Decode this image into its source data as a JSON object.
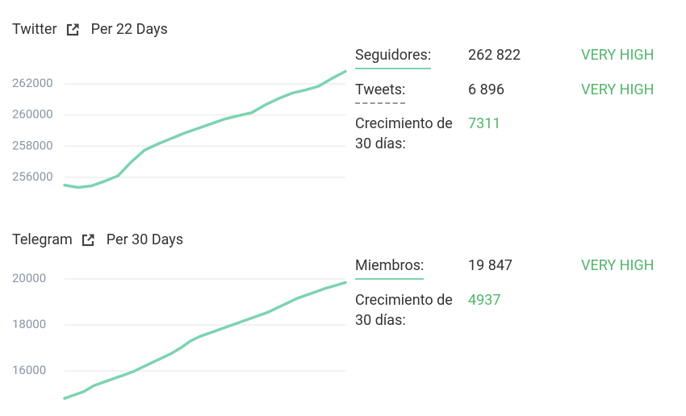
{
  "panels": [
    {
      "title": "Twitter",
      "period": "Per 22 Days",
      "chart": {
        "type": "line",
        "color": "#7dd3b0",
        "grid": true,
        "ylim": [
          255000,
          264000
        ],
        "yticks": [
          256000,
          258000,
          260000,
          262000
        ],
        "values": [
          255500,
          255350,
          255450,
          255750,
          256100,
          257000,
          257750,
          258150,
          258500,
          258850,
          259150,
          259450,
          259750,
          259950,
          260150,
          260650,
          261050,
          261400,
          261600,
          261850,
          262350,
          262800
        ]
      },
      "stats": [
        {
          "label": "Seguidores:",
          "value": "262 822",
          "rating": "VERY HIGH"
        },
        {
          "label": "Tweets:",
          "value": "6 896",
          "rating": "VERY HIGH"
        },
        {
          "label": "Crecimiento de 30 días:",
          "value": 7311
        }
      ]
    },
    {
      "title": "Telegram",
      "period": "Per 30 Days",
      "chart": {
        "type": "line",
        "color": "#7dd3b0",
        "grid": true,
        "ylim": [
          14700,
          20500
        ],
        "yticks": [
          16000,
          18000,
          20000
        ],
        "values": [
          14800,
          14950,
          15100,
          15350,
          15500,
          15650,
          15800,
          15950,
          16150,
          16350,
          16550,
          16750,
          17000,
          17300,
          17500,
          17650,
          17800,
          17950,
          18100,
          18250,
          18400,
          18550,
          18750,
          18950,
          19150,
          19300,
          19450,
          19600,
          19720,
          19847
        ]
      },
      "stats": [
        {
          "label": "Miembros:",
          "value": "19 847",
          "rating": "VERY HIGH"
        },
        {
          "label": "Crecimiento de 30 días:",
          "value": 4937
        }
      ]
    }
  ]
}
